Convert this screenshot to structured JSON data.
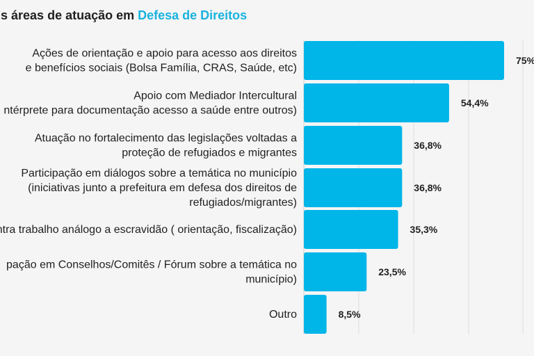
{
  "chart_data": {
    "type": "bar",
    "orientation": "horizontal",
    "title_prefix": "ais áreas de atuação em ",
    "title_highlight": "Defesa de Direitos",
    "categories": [
      [
        "Ações de orientação e apoio para acesso aos direitos",
        "e benefícios sociais (Bolsa Família, CRAS, Saúde, etc)"
      ],
      [
        "Apoio com Mediador Intercultural",
        "ntérprete para documentação acesso a saúde entre outros)"
      ],
      [
        "Atuação no fortalecimento das legislações voltadas a",
        "proteção de refugiados e migrantes"
      ],
      [
        "Participação em diálogos sobre a temática no município",
        "(iniciativas junto a prefeitura em defesa dos direitos de",
        "refugiados/migrantes)"
      ],
      [
        "ntra trabalho análogo a escravidão ( orientação, fiscalização)"
      ],
      [
        "pação em Conselhos/Comitês / Fórum sobre a temática no",
        "município)"
      ],
      [
        "Outro"
      ]
    ],
    "values": [
      75,
      54.4,
      36.8,
      36.8,
      35.3,
      23.5,
      8.5
    ],
    "value_labels": [
      "75%",
      "54,4%",
      "36,8%",
      "36,8%",
      "35,3%",
      "23,5%",
      "8,5%"
    ],
    "xlim": [
      0,
      100
    ],
    "grid": true,
    "colors": {
      "bar": "#00b5e8",
      "title_accent": "#19b3e0",
      "text": "#1f1f1f",
      "background": "#f5f5f5"
    }
  }
}
